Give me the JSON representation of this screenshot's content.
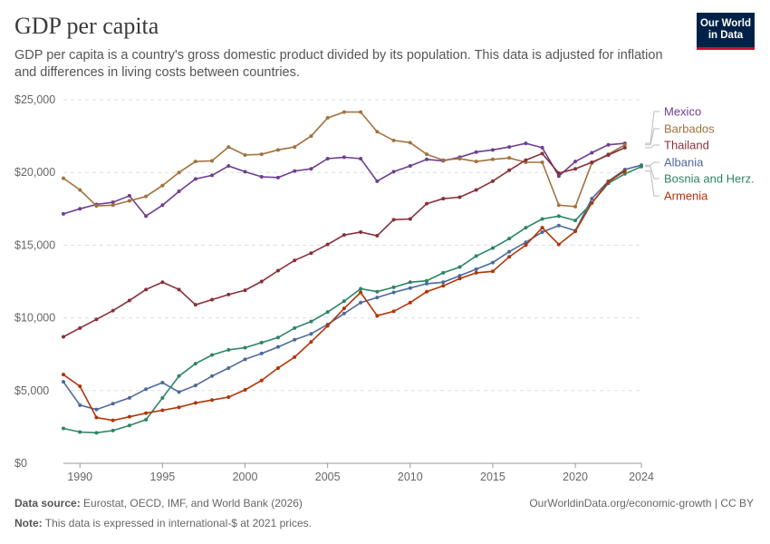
{
  "header": {
    "title": "GDP per capita",
    "subtitle": "GDP per capita is a country's gross domestic product divided by its population. This data is adjusted for inflation and differences in living costs between countries.",
    "logo_line1": "Our World",
    "logo_line2": "in Data"
  },
  "footer": {
    "source_label": "Data source:",
    "source_text": " Eurostat, OECD, IMF, and World Bank (2026)",
    "note_label": "Note:",
    "note_text": " This data is expressed in international-$ at 2021 prices.",
    "credit": "OurWorldinData.org/economic-growth | CC BY"
  },
  "colors": {
    "Mexico": "#6d3e91",
    "Barbados": "#a2723f",
    "Thailand": "#883039",
    "Albania": "#4c6a9c",
    "Bosnia and Herz.": "#2c8465",
    "Armenia": "#b13507"
  },
  "chart_data": {
    "type": "line",
    "x": [
      1989,
      1990,
      1991,
      1992,
      1993,
      1994,
      1995,
      1996,
      1997,
      1998,
      1999,
      2000,
      2001,
      2002,
      2003,
      2004,
      2005,
      2006,
      2007,
      2008,
      2009,
      2010,
      2011,
      2012,
      2013,
      2014,
      2015,
      2016,
      2017,
      2018,
      2019,
      2020,
      2021,
      2022,
      2023,
      2024
    ],
    "xticks": [
      1990,
      1995,
      2000,
      2005,
      2010,
      2015,
      2020,
      2024
    ],
    "xtick_labels": [
      "1990",
      "1995",
      "2000",
      "2005",
      "2010",
      "2015",
      "2020",
      "2024"
    ],
    "yticks": [
      0,
      5000,
      10000,
      15000,
      20000,
      25000
    ],
    "ytick_labels": [
      "$0",
      "$5,000",
      "$10,000",
      "$15,000",
      "$20,000",
      "$25,000"
    ],
    "xlim": [
      1989,
      2024
    ],
    "ylim": [
      0,
      25000
    ],
    "grid": true,
    "legend": "right",
    "series": [
      {
        "name": "Mexico",
        "values": [
          17150,
          17500,
          17800,
          17950,
          18400,
          17000,
          17750,
          18700,
          19550,
          19800,
          20450,
          20050,
          19700,
          19650,
          20100,
          20250,
          20950,
          21050,
          20950,
          19400,
          20050,
          20450,
          20900,
          20800,
          21050,
          21400,
          21550,
          21750,
          22000,
          21700,
          19750,
          20750,
          21350,
          21900,
          22000,
          null
        ]
      },
      {
        "name": "Barbados",
        "values": [
          19600,
          18800,
          17700,
          17750,
          18050,
          18350,
          19100,
          20000,
          20750,
          20800,
          21750,
          21200,
          21250,
          21550,
          21750,
          22500,
          23750,
          24150,
          24150,
          22800,
          22200,
          22050,
          21250,
          20850,
          20950,
          20750,
          20900,
          21000,
          20700,
          20700,
          17750,
          17650,
          20650,
          21250,
          21900,
          null
        ]
      },
      {
        "name": "Thailand",
        "values": [
          8700,
          9300,
          9900,
          10500,
          11200,
          11950,
          12450,
          11950,
          10900,
          11250,
          11600,
          11900,
          12500,
          13250,
          13950,
          14450,
          15050,
          15700,
          15900,
          15650,
          16750,
          16800,
          17850,
          18200,
          18300,
          18800,
          19400,
          20150,
          20850,
          21300,
          19950,
          20250,
          20700,
          21200,
          21700,
          null
        ]
      },
      {
        "name": "Albania",
        "values": [
          5600,
          4000,
          3700,
          4100,
          4500,
          5100,
          5550,
          4900,
          5350,
          6000,
          6550,
          7150,
          7550,
          8000,
          8500,
          8900,
          9550,
          10300,
          11050,
          11400,
          11750,
          12050,
          12350,
          12450,
          12900,
          13350,
          13800,
          14550,
          15200,
          15900,
          16350,
          16000,
          18200,
          19400,
          20200,
          20500
        ]
      },
      {
        "name": "Bosnia and Herz.",
        "values": [
          2400,
          2150,
          2100,
          2250,
          2600,
          3000,
          4500,
          6000,
          6850,
          7450,
          7800,
          7950,
          8300,
          8650,
          9300,
          9750,
          10400,
          11150,
          12000,
          11800,
          12100,
          12450,
          12550,
          13100,
          13500,
          14250,
          14800,
          15450,
          16200,
          16800,
          17000,
          16700,
          17900,
          19250,
          19900,
          20400
        ]
      },
      {
        "name": "Armenia",
        "values": [
          6100,
          5300,
          3150,
          2950,
          3200,
          3450,
          3650,
          3850,
          4150,
          4350,
          4550,
          5050,
          5700,
          6550,
          7300,
          8350,
          9450,
          10650,
          11750,
          10150,
          10450,
          11050,
          11800,
          12200,
          12700,
          13100,
          13200,
          14200,
          15000,
          16200,
          15050,
          15950,
          17900,
          19350,
          20100,
          null
        ]
      }
    ]
  }
}
